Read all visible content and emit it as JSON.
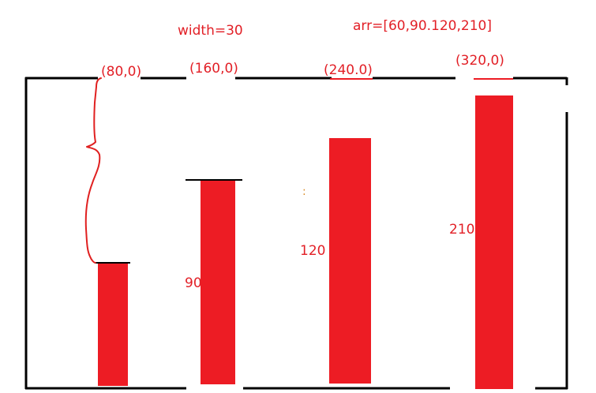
{
  "header": {
    "width_note": "width=30",
    "array_note": "arr=[60,90.120,210]"
  },
  "colors": {
    "bar": "#ed1c24",
    "text": "#e21f26",
    "frame": "#000000",
    "brace": "#e02020"
  },
  "coord_labels": [
    "(80,0)",
    "(160,0)",
    "(240.0)",
    "(320,0)"
  ],
  "bars": [
    {
      "value_label": ""
    },
    {
      "value_label": "90"
    },
    {
      "value_label": "120"
    },
    {
      "value_label": "210"
    }
  ],
  "stray_mark": ":"
}
